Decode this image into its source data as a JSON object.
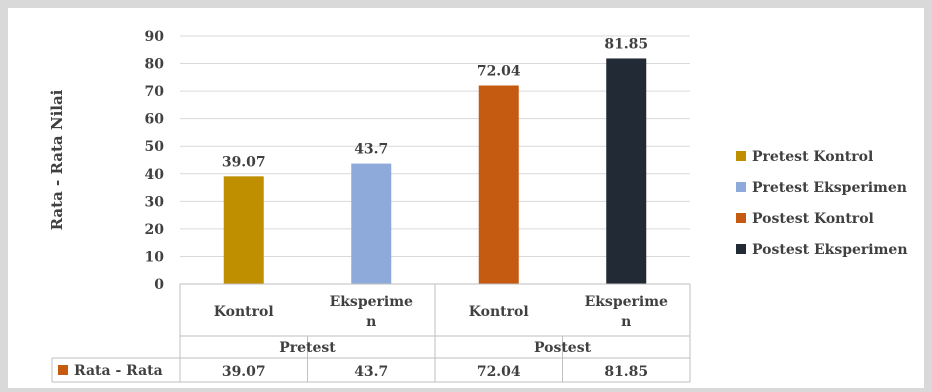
{
  "chart_data": {
    "type": "bar",
    "ylabel": "Rata - Rata Nilai",
    "ylim": [
      0,
      90
    ],
    "yticks": [
      0,
      10,
      20,
      30,
      40,
      50,
      60,
      70,
      80,
      90
    ],
    "grid": true,
    "legend_position": "right",
    "groups": [
      {
        "label": "Pretest",
        "categories": [
          "Kontrol",
          "Eksperimen"
        ]
      },
      {
        "label": "Postest",
        "categories": [
          "Kontrol",
          "Eksperimen"
        ]
      }
    ],
    "series": [
      {
        "name": "Pretest Kontrol",
        "value": 39.07,
        "value_label": "39.07",
        "color": "#bf8f00"
      },
      {
        "name": "Pretest Eksperimen",
        "value": 43.7,
        "value_label": "43.7",
        "color": "#8eaadb"
      },
      {
        "name": "Postest Kontrol",
        "value": 72.04,
        "value_label": "72.04",
        "color": "#c55a11"
      },
      {
        "name": "Postest Eksperimen",
        "value": 81.85,
        "value_label": "81.85",
        "color": "#222a35"
      }
    ],
    "table": {
      "row_label": "Rata - Rata",
      "row_marker_color": "#c55a11",
      "values": [
        "39.07",
        "43.7",
        "72.04",
        "81.85"
      ]
    }
  }
}
